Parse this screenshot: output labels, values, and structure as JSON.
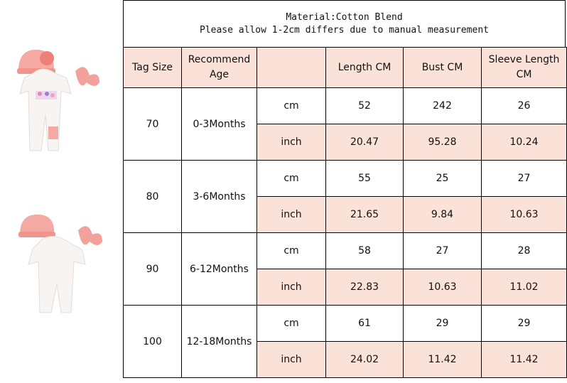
{
  "header": {
    "line1": "Material:Cotton Blend",
    "line2": "Please allow 1-2cm differs due to manual measurement"
  },
  "columns": [
    "Tag Size",
    "Recommend Age",
    "",
    "Length CM",
    "Bust CM",
    "Sleeve Length CM"
  ],
  "rows": [
    {
      "tag": "70",
      "age": "0-3Months",
      "cm": [
        "cm",
        "52",
        "242",
        "26"
      ],
      "inch": [
        "inch",
        "20.47",
        "95.28",
        "10.24"
      ]
    },
    {
      "tag": "80",
      "age": "3-6Months",
      "cm": [
        "cm",
        "55",
        "25",
        "27"
      ],
      "inch": [
        "inch",
        "21.65",
        "9.84",
        "10.63"
      ]
    },
    {
      "tag": "90",
      "age": "6-12Months",
      "cm": [
        "cm",
        "58",
        "27",
        "28"
      ],
      "inch": [
        "inch",
        "22.83",
        "10.63",
        "11.02"
      ]
    },
    {
      "tag": "100",
      "age": "12-18Months",
      "cm": [
        "cm",
        "61",
        "29",
        "29"
      ],
      "inch": [
        "inch",
        "24.02",
        "11.42",
        "11.42"
      ]
    }
  ],
  "colors": {
    "pink_fill": "#fbe2d8",
    "border": "#000000"
  }
}
